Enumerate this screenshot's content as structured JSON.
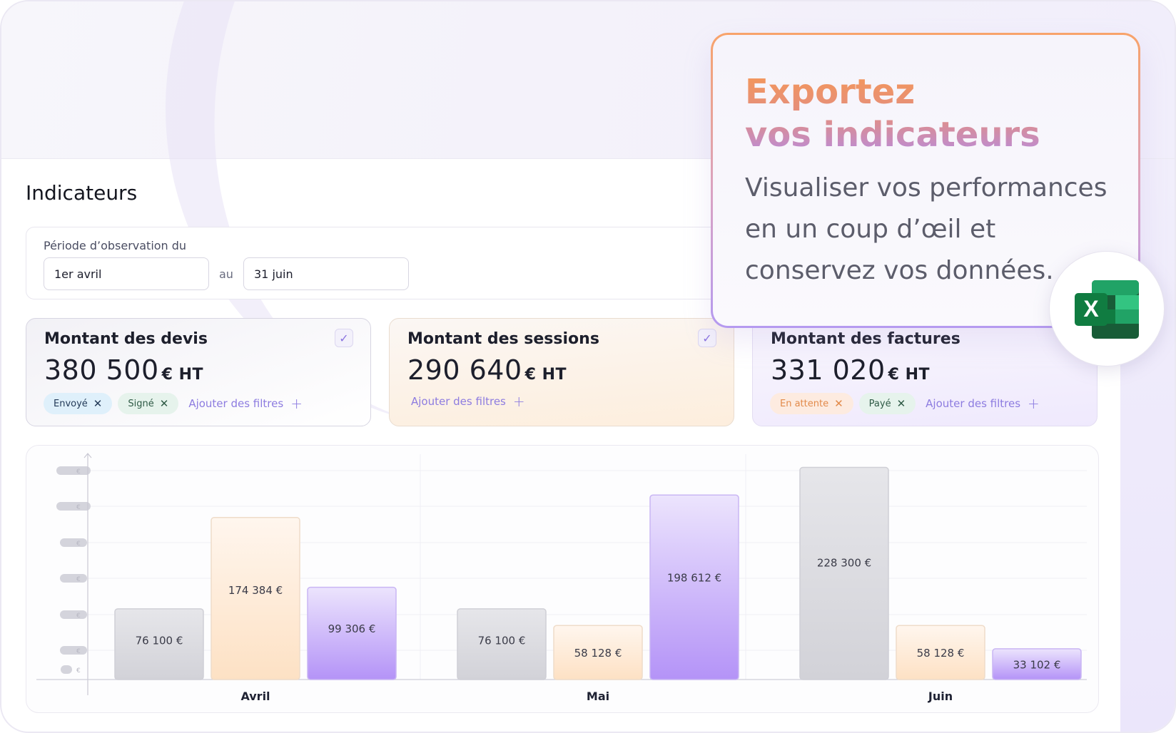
{
  "page": {
    "title": "Indicateurs"
  },
  "period": {
    "label": "Période d’observation du",
    "from": "1er avril",
    "separator": "au",
    "to": "31 juin"
  },
  "kpis": [
    {
      "title": "Montant des devis",
      "value": "380 500",
      "unit": "€ HT",
      "checked": true,
      "filters": [
        "Envoyé",
        "Signé"
      ],
      "add_filter": "Ajouter des filtres"
    },
    {
      "title": "Montant des sessions",
      "value": "290 640",
      "unit": "€ HT",
      "checked": true,
      "filters": [],
      "add_filter": "Ajouter des filtres"
    },
    {
      "title": "Montant des factures",
      "value": "331 020",
      "unit": "€ HT",
      "checked": false,
      "filters": [
        "En attente",
        "Payé"
      ],
      "add_filter": "Ajouter des filtres"
    }
  ],
  "overlay": {
    "title_line1": "Exportez",
    "title_line2": "vos indicateurs",
    "text": "Visualiser vos performances en un coup d’œil et conservez vos données.",
    "icon": "excel-icon",
    "icon_letter": "X"
  },
  "colors": {
    "devis": "#d9d9de",
    "sessions": "#fde3c8",
    "factures": "#b99af8",
    "accent": "#8d7ce0",
    "orange": "#f59857"
  },
  "chart_data": {
    "type": "bar",
    "categories": [
      "Avril",
      "Mai",
      "Juin"
    ],
    "series": [
      {
        "values": [
          76100,
          76100,
          228300
        ],
        "labels": [
          "76 100 €",
          "76 100 €",
          "228 300 €"
        ]
      },
      {
        "values": [
          174384,
          58128,
          58128
        ],
        "labels": [
          "174 384 €",
          "58 128 €",
          "58 128 €"
        ]
      },
      {
        "values": [
          99306,
          198612,
          33102
        ],
        "labels": [
          "99 306 €",
          "198 612 €",
          "33 102 €"
        ]
      }
    ],
    "y_tick_unit": "€",
    "ylim": [
      0,
      250000
    ],
    "grid": true
  }
}
